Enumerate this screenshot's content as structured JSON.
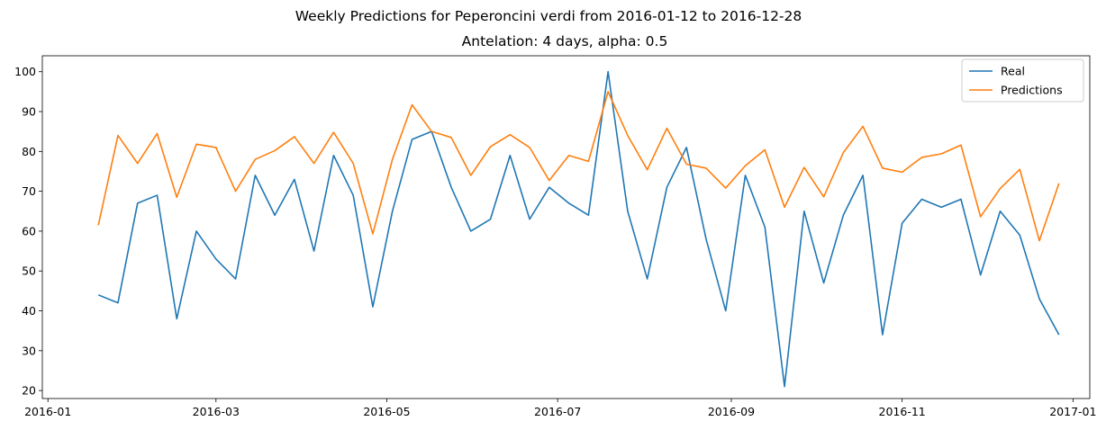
{
  "chart_data": {
    "type": "line",
    "suptitle": "Weekly Predictions for Peperoncini verdi from 2016-01-12 to 2016-12-28",
    "title": "Antelation: 4 days, alpha: 0.5",
    "xlabel": "",
    "ylabel": "",
    "x_axis_type": "date",
    "xlim": [
      "2015-12-30",
      "2017-01-07"
    ],
    "ylim": [
      18,
      104
    ],
    "xticks": [
      "2016-01",
      "2016-03",
      "2016-05",
      "2016-07",
      "2016-09",
      "2016-11",
      "2017-01"
    ],
    "yticks": [
      20,
      30,
      40,
      50,
      60,
      70,
      80,
      90,
      100
    ],
    "grid": false,
    "legend_position": "top-right",
    "x": [
      "2016-01-19",
      "2016-01-26",
      "2016-02-02",
      "2016-02-09",
      "2016-02-16",
      "2016-02-23",
      "2016-03-01",
      "2016-03-08",
      "2016-03-15",
      "2016-03-22",
      "2016-03-29",
      "2016-04-05",
      "2016-04-12",
      "2016-04-19",
      "2016-04-26",
      "2016-05-03",
      "2016-05-10",
      "2016-05-17",
      "2016-05-24",
      "2016-05-31",
      "2016-06-07",
      "2016-06-14",
      "2016-06-21",
      "2016-06-28",
      "2016-07-05",
      "2016-07-12",
      "2016-07-19",
      "2016-07-26",
      "2016-08-02",
      "2016-08-09",
      "2016-08-16",
      "2016-08-23",
      "2016-08-30",
      "2016-09-06",
      "2016-09-13",
      "2016-09-20",
      "2016-09-27",
      "2016-10-04",
      "2016-10-11",
      "2016-10-18",
      "2016-10-25",
      "2016-11-01",
      "2016-11-08",
      "2016-11-15",
      "2016-11-22",
      "2016-11-29",
      "2016-12-06",
      "2016-12-13",
      "2016-12-20",
      "2016-12-27"
    ],
    "series": [
      {
        "name": "Real",
        "color": "#1f77b4",
        "values": [
          44,
          42,
          67,
          69,
          38,
          60,
          53,
          48,
          74,
          64,
          73,
          55,
          79,
          69,
          41,
          65,
          83,
          85,
          71,
          60,
          63,
          79,
          63,
          71,
          67,
          64,
          100,
          65,
          48,
          71,
          81,
          58,
          40,
          74,
          61,
          21,
          65,
          47,
          64,
          74,
          34,
          62,
          68,
          66,
          68,
          49,
          65,
          59,
          43,
          34
        ]
      },
      {
        "name": "Predictions",
        "color": "#ff7f0e",
        "values": [
          61.5,
          84,
          77,
          84.5,
          68.5,
          81.8,
          81,
          70,
          78,
          80.2,
          83.7,
          77,
          84.8,
          77,
          59.3,
          78,
          91.7,
          85,
          83.5,
          74,
          81.2,
          84.2,
          81,
          72.7,
          79,
          77.5,
          95,
          84,
          75.4,
          85.8,
          76.8,
          75.8,
          70.8,
          76.4,
          80.4,
          66,
          76,
          68.6,
          79.7,
          86.3,
          75.8,
          74.8,
          78.5,
          79.4,
          81.6,
          63.6,
          70.7,
          75.5,
          57.6,
          72
        ]
      }
    ]
  }
}
